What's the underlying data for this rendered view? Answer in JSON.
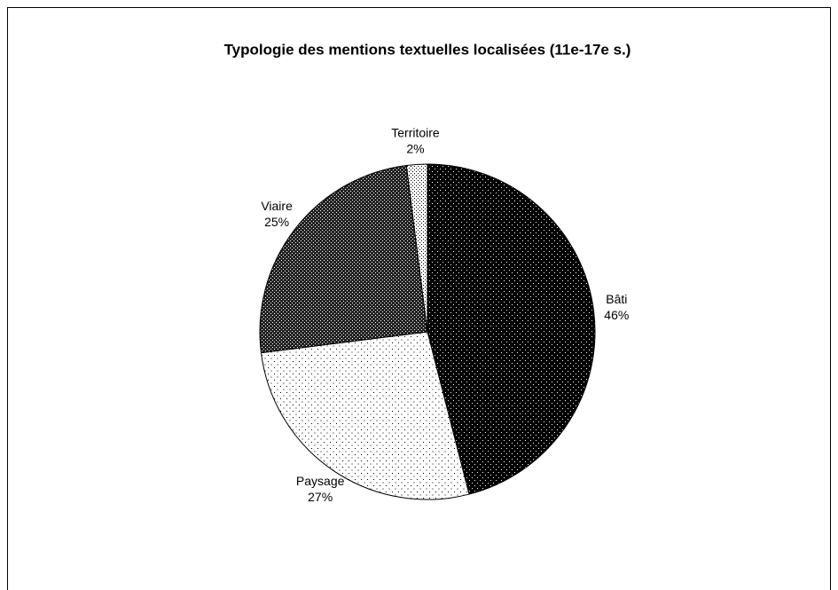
{
  "chart_data": {
    "type": "pie",
    "title": "Typologie des mentions textuelles localisées (11e-17e s.)",
    "categories": [
      "Bâti",
      "Paysage",
      "Viaire",
      "Territoire"
    ],
    "values": [
      46,
      27,
      25,
      2
    ],
    "value_labels": [
      "46%",
      "27%",
      "25%",
      "2%"
    ],
    "colors": [
      "#000000",
      "#ffffff",
      "#222222",
      "#ffffff"
    ]
  }
}
